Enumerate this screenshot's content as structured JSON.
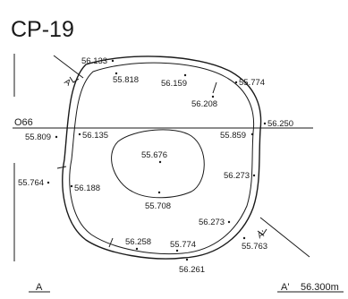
{
  "title": "CP-19",
  "contour_label": "O66",
  "section_start": "A",
  "section_end": "A'",
  "section_end_value": "56.300m",
  "arrow_label_top": "A",
  "arrow_label_bottom": "A'",
  "elevations": {
    "e1": "56.133",
    "e2": "55.818",
    "e3": "56.159",
    "e4": "55.774",
    "e5": "56.208",
    "e6": "56.250",
    "e7": "55.809",
    "e8": "56.135",
    "e9": "55.859",
    "e10": "55.676",
    "e11": "56.273",
    "e12": "55.764",
    "e13": "56.188",
    "e14": "55.708",
    "e15": "56.273",
    "e16": "56.258",
    "e17": "55.774",
    "e18": "55.763",
    "e19": "56.261"
  }
}
